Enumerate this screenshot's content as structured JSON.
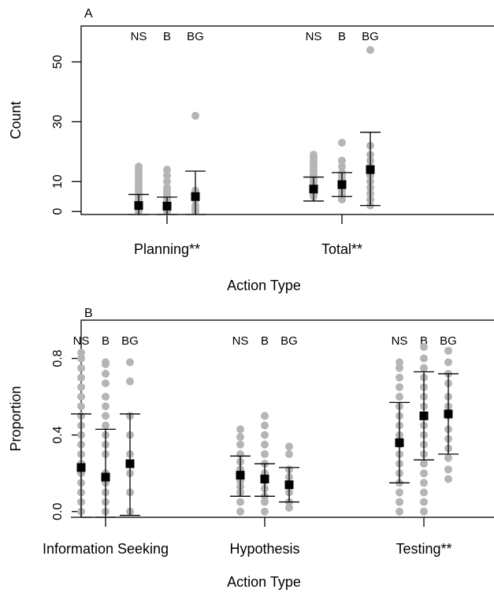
{
  "chart_data": [
    {
      "panel_label": "A",
      "type": "scatter",
      "xlabel": "Action Type",
      "ylabel": "Count",
      "ylim": [
        -1,
        62
      ],
      "yticks": [
        0,
        10,
        30,
        50
      ],
      "group_labels": [
        "NS",
        "B",
        "BG"
      ],
      "categories": [
        "Planning**",
        "Total**"
      ],
      "groups": [
        {
          "category": "Planning**",
          "series": [
            {
              "label": "NS",
              "mean": 2,
              "lo": -1,
              "hi": 5.7,
              "points": [
                0,
                0.5,
                1,
                1.5,
                2,
                2.5,
                3,
                3.5,
                4,
                5,
                6,
                7,
                8,
                9,
                10,
                11,
                12,
                13,
                14,
                15
              ]
            },
            {
              "label": "B",
              "mean": 1.8,
              "lo": -1,
              "hi": 4.8,
              "points": [
                0,
                0.5,
                1,
                2,
                3,
                4,
                5,
                6,
                7,
                8,
                10,
                12,
                14
              ]
            },
            {
              "label": "BG",
              "mean": 5,
              "lo": -1,
              "hi": 13.5,
              "points": [
                0,
                1,
                2,
                4,
                7,
                32
              ]
            }
          ]
        },
        {
          "category": "Total**",
          "series": [
            {
              "label": "NS",
              "mean": 7.5,
              "lo": 3.5,
              "hi": 11.5,
              "points": [
                5,
                6,
                7,
                8,
                9,
                10,
                11,
                12,
                13,
                14,
                15,
                16,
                17,
                18,
                19
              ]
            },
            {
              "label": "B",
              "mean": 9,
              "lo": 5,
              "hi": 13,
              "points": [
                4,
                5,
                6,
                7,
                8,
                9,
                10,
                11,
                12,
                13,
                15,
                17,
                23
              ]
            },
            {
              "label": "BG",
              "mean": 14,
              "lo": 2,
              "hi": 26.5,
              "points": [
                2,
                4,
                6,
                8,
                10,
                12,
                13,
                14,
                15,
                17,
                19,
                22,
                54
              ]
            }
          ]
        }
      ]
    },
    {
      "panel_label": "B",
      "type": "scatter",
      "xlabel": "Action Type",
      "ylabel": "Proportion",
      "ylim": [
        -0.03,
        1.0
      ],
      "yticks": [
        0.0,
        0.4,
        0.8
      ],
      "ytick_labels": [
        "0.0",
        "0.4",
        "0.8"
      ],
      "group_labels": [
        "NS",
        "B",
        "BG"
      ],
      "categories": [
        "Information Seeking",
        "Hypothesis",
        "Testing**"
      ],
      "groups": [
        {
          "category": "Information Seeking",
          "series": [
            {
              "label": "NS",
              "mean": 0.23,
              "lo": -0.03,
              "hi": 0.51,
              "points": [
                0.0,
                0.05,
                0.1,
                0.15,
                0.2,
                0.25,
                0.3,
                0.35,
                0.4,
                0.45,
                0.5,
                0.55,
                0.6,
                0.65,
                0.7,
                0.75,
                0.8,
                0.83
              ]
            },
            {
              "label": "B",
              "mean": 0.18,
              "lo": -0.03,
              "hi": 0.43,
              "points": [
                0.0,
                0.05,
                0.1,
                0.15,
                0.2,
                0.3,
                0.35,
                0.4,
                0.45,
                0.5,
                0.55,
                0.6,
                0.67,
                0.72,
                0.77,
                0.78
              ]
            },
            {
              "label": "BG",
              "mean": 0.25,
              "lo": -0.02,
              "hi": 0.51,
              "points": [
                0.0,
                0.1,
                0.2,
                0.3,
                0.4,
                0.5,
                0.68,
                0.78
              ]
            }
          ]
        },
        {
          "category": "Hypothesis",
          "series": [
            {
              "label": "NS",
              "mean": 0.19,
              "lo": 0.08,
              "hi": 0.29,
              "points": [
                0.0,
                0.05,
                0.1,
                0.13,
                0.16,
                0.19,
                0.22,
                0.26,
                0.3,
                0.35,
                0.39,
                0.43
              ]
            },
            {
              "label": "B",
              "mean": 0.17,
              "lo": 0.08,
              "hi": 0.25,
              "points": [
                0.0,
                0.05,
                0.08,
                0.12,
                0.16,
                0.2,
                0.25,
                0.3,
                0.35,
                0.4,
                0.45,
                0.5
              ]
            },
            {
              "label": "BG",
              "mean": 0.14,
              "lo": 0.05,
              "hi": 0.23,
              "points": [
                0.02,
                0.05,
                0.1,
                0.14,
                0.18,
                0.22,
                0.3,
                0.34
              ]
            }
          ]
        },
        {
          "category": "Testing**",
          "series": [
            {
              "label": "NS",
              "mean": 0.36,
              "lo": 0.15,
              "hi": 0.57,
              "points": [
                0.0,
                0.05,
                0.1,
                0.15,
                0.2,
                0.25,
                0.3,
                0.35,
                0.4,
                0.45,
                0.5,
                0.55,
                0.6,
                0.65,
                0.7,
                0.75,
                0.78
              ]
            },
            {
              "label": "B",
              "mean": 0.5,
              "lo": 0.27,
              "hi": 0.73,
              "points": [
                0.0,
                0.05,
                0.1,
                0.15,
                0.2,
                0.25,
                0.3,
                0.35,
                0.4,
                0.45,
                0.5,
                0.55,
                0.6,
                0.65,
                0.7,
                0.75,
                0.8,
                0.86
              ]
            },
            {
              "label": "BG",
              "mean": 0.51,
              "lo": 0.3,
              "hi": 0.72,
              "points": [
                0.17,
                0.22,
                0.28,
                0.33,
                0.38,
                0.43,
                0.5,
                0.55,
                0.6,
                0.67,
                0.72,
                0.78,
                0.84
              ]
            }
          ]
        }
      ]
    }
  ]
}
